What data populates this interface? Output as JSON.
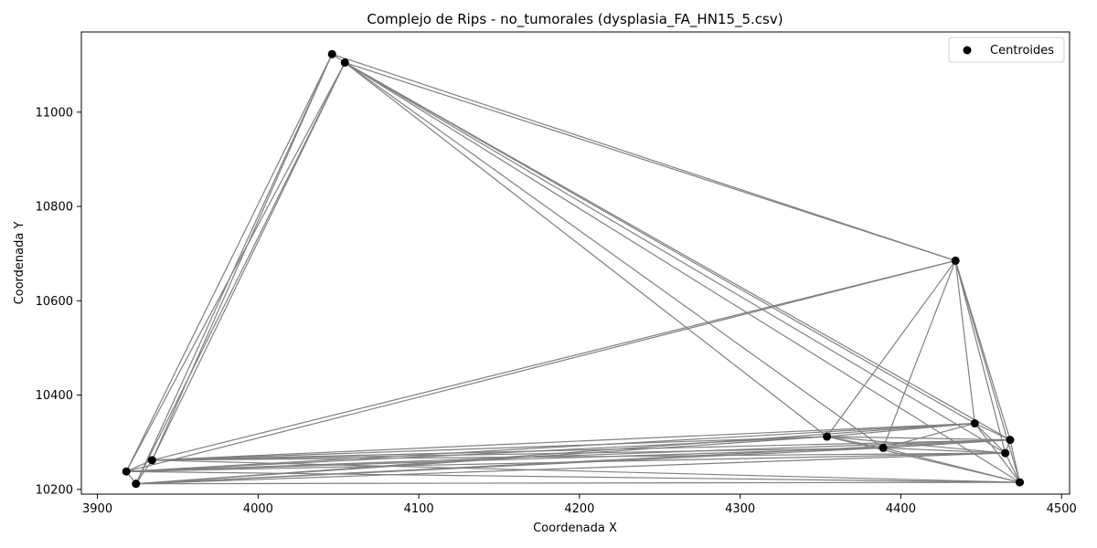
{
  "chart_data": {
    "type": "scatter",
    "title": "Complejo de Rips - no_tumorales (dysplasia_FA_HN15_5.csv)",
    "xlabel": "Coordenada X",
    "ylabel": "Coordenada Y",
    "xlim": [
      3890,
      4505
    ],
    "ylim": [
      10190,
      11170
    ],
    "xticks": [
      3900,
      4000,
      4100,
      4200,
      4300,
      4400,
      4500
    ],
    "yticks": [
      10200,
      10400,
      10600,
      10800,
      11000
    ],
    "grid": false,
    "legend": {
      "position": "top-right",
      "entries": [
        "Centroides"
      ]
    },
    "colors": {
      "points": "#000000",
      "edges": "#808080"
    },
    "series": [
      {
        "name": "Centroides",
        "points": [
          {
            "x": 4046,
            "y": 11123
          },
          {
            "x": 4054,
            "y": 11105
          },
          {
            "x": 4434,
            "y": 10685
          },
          {
            "x": 3918,
            "y": 10238
          },
          {
            "x": 3924,
            "y": 10212
          },
          {
            "x": 3934,
            "y": 10262
          },
          {
            "x": 4354,
            "y": 10312
          },
          {
            "x": 4389,
            "y": 10288
          },
          {
            "x": 4446,
            "y": 10340
          },
          {
            "x": 4468,
            "y": 10305
          },
          {
            "x": 4465,
            "y": 10277
          },
          {
            "x": 4474,
            "y": 10215
          }
        ]
      }
    ],
    "edges": [
      [
        0,
        1
      ],
      [
        0,
        3
      ],
      [
        0,
        4
      ],
      [
        0,
        5
      ],
      [
        1,
        3
      ],
      [
        1,
        4
      ],
      [
        1,
        5
      ],
      [
        1,
        2
      ],
      [
        0,
        2
      ],
      [
        1,
        6
      ],
      [
        1,
        8
      ],
      [
        1,
        9
      ],
      [
        1,
        10
      ],
      [
        1,
        11
      ],
      [
        1,
        7
      ],
      [
        2,
        3
      ],
      [
        2,
        5
      ],
      [
        2,
        6
      ],
      [
        2,
        7
      ],
      [
        2,
        8
      ],
      [
        2,
        9
      ],
      [
        2,
        10
      ],
      [
        2,
        11
      ],
      [
        3,
        4
      ],
      [
        3,
        5
      ],
      [
        3,
        6
      ],
      [
        3,
        7
      ],
      [
        3,
        8
      ],
      [
        3,
        9
      ],
      [
        3,
        10
      ],
      [
        3,
        11
      ],
      [
        4,
        5
      ],
      [
        4,
        6
      ],
      [
        4,
        7
      ],
      [
        4,
        8
      ],
      [
        4,
        9
      ],
      [
        4,
        10
      ],
      [
        4,
        11
      ],
      [
        5,
        6
      ],
      [
        5,
        7
      ],
      [
        5,
        8
      ],
      [
        5,
        9
      ],
      [
        5,
        10
      ],
      [
        5,
        11
      ],
      [
        6,
        7
      ],
      [
        6,
        8
      ],
      [
        6,
        9
      ],
      [
        6,
        10
      ],
      [
        6,
        11
      ],
      [
        7,
        8
      ],
      [
        7,
        9
      ],
      [
        7,
        10
      ],
      [
        7,
        11
      ],
      [
        8,
        9
      ],
      [
        8,
        10
      ],
      [
        8,
        11
      ],
      [
        9,
        10
      ],
      [
        9,
        11
      ],
      [
        10,
        11
      ]
    ]
  }
}
